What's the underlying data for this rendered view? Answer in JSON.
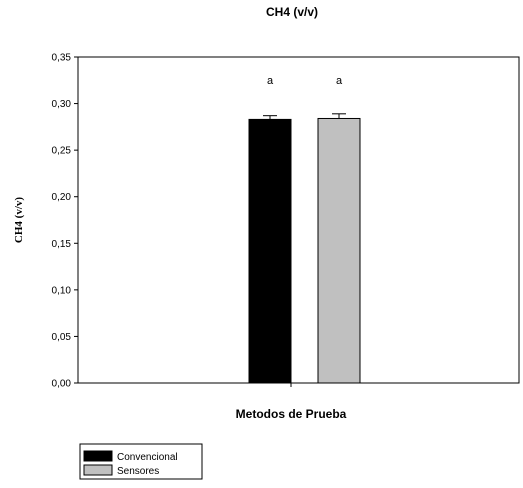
{
  "chart_data": {
    "type": "bar",
    "title": "CH4 (v/v)",
    "xlabel": "Metodos de Prueba",
    "ylabel": "CH4 (v/v)",
    "ylim": [
      0,
      0.35
    ],
    "yticks": [
      "0,00",
      "0,05",
      "0,10",
      "0,15",
      "0,20",
      "0,25",
      "0,30",
      "0,35"
    ],
    "grid": false,
    "legend_position": "bottom-left",
    "series": [
      {
        "name": "Convencional",
        "value": 0.283,
        "error": 0.004,
        "annotation": "a",
        "color": "#000000"
      },
      {
        "name": "Sensores",
        "value": 0.284,
        "error": 0.005,
        "annotation": "a",
        "color": "#c0c0c0"
      }
    ]
  }
}
